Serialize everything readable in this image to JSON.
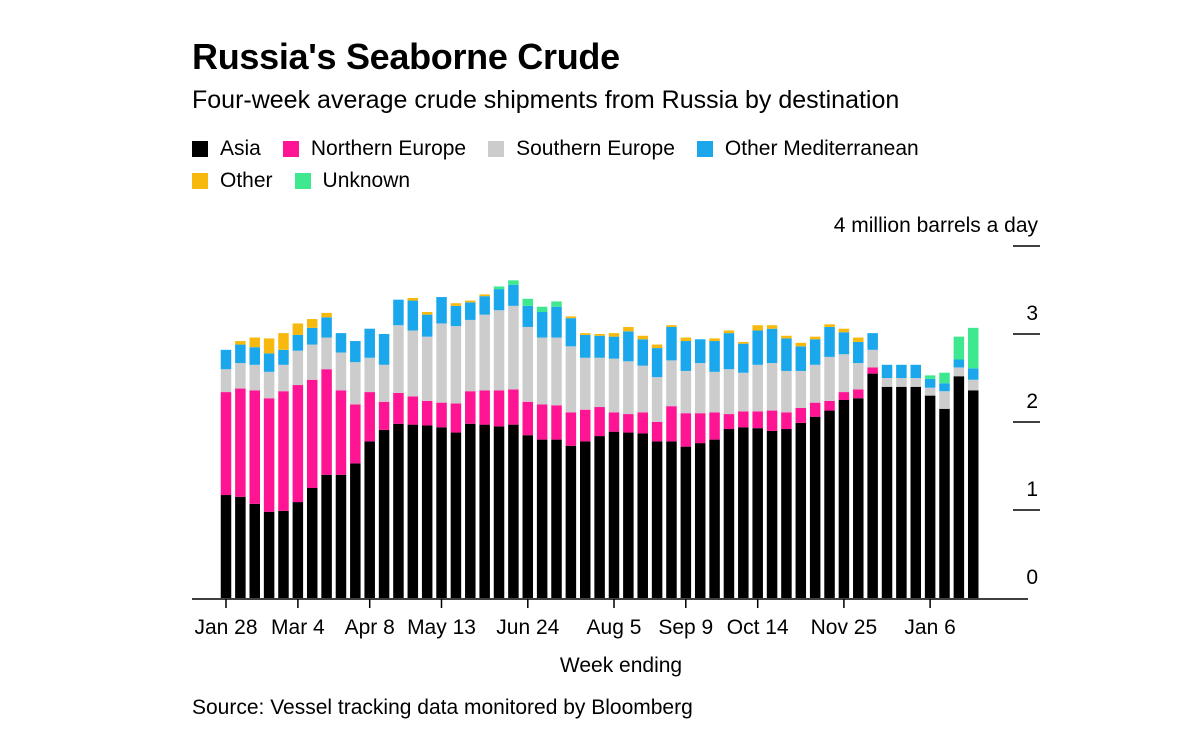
{
  "header": {
    "title": "Russia's Seaborne Crude",
    "subtitle": "Four-week average crude shipments from Russia by destination"
  },
  "legend": [
    {
      "label": "Asia",
      "color": "#000000"
    },
    {
      "label": "Northern Europe",
      "color": "#ff1493"
    },
    {
      "label": "Southern Europe",
      "color": "#cccccc"
    },
    {
      "label": "Other Mediterranean",
      "color": "#1aa7ec"
    },
    {
      "label": "Other",
      "color": "#f8b90e"
    },
    {
      "label": "Unknown",
      "color": "#3ee88e"
    }
  ],
  "source": "Source: Vessel tracking data monitored by Bloomberg",
  "chart_data": {
    "type": "bar",
    "stacked": true,
    "title": "Russia's Seaborne Crude",
    "subtitle": "Four-week average crude shipments from Russia by destination",
    "xlabel": "Week ending",
    "ylabel": "4 million barrels a day",
    "ylim": [
      0,
      4
    ],
    "y_ticks": [
      {
        "value": 0,
        "label": "0"
      },
      {
        "value": 1,
        "label": "1"
      },
      {
        "value": 2,
        "label": "2"
      },
      {
        "value": 3,
        "label": "3"
      },
      {
        "value": 4,
        "label": "4 million barrels a day"
      }
    ],
    "x_ticks": [
      {
        "index": 0,
        "label": "Jan 28"
      },
      {
        "index": 5,
        "label": "Mar 4"
      },
      {
        "index": 10,
        "label": "Apr 8"
      },
      {
        "index": 15,
        "label": "May 13"
      },
      {
        "index": 21,
        "label": "Jun 24"
      },
      {
        "index": 27,
        "label": "Aug 5"
      },
      {
        "index": 32,
        "label": "Sep 9"
      },
      {
        "index": 37,
        "label": "Oct 14"
      },
      {
        "index": 43,
        "label": "Nov 25"
      },
      {
        "index": 49,
        "label": "Jan 6"
      }
    ],
    "series": [
      {
        "name": "Asia",
        "color": "#000000",
        "values": [
          1.17,
          1.15,
          1.07,
          0.98,
          0.99,
          1.09,
          1.25,
          1.4,
          1.4,
          1.53,
          1.78,
          1.91,
          1.98,
          1.97,
          1.96,
          1.94,
          1.88,
          1.98,
          1.97,
          1.95,
          1.97,
          1.85,
          1.8,
          1.8,
          1.73,
          1.78,
          1.84,
          1.89,
          1.88,
          1.87,
          1.78,
          1.78,
          1.72,
          1.76,
          1.8,
          1.92,
          1.94,
          1.93,
          1.9,
          1.92,
          1.99,
          2.06,
          2.13,
          2.25,
          2.27,
          2.55,
          2.4,
          2.4,
          2.4,
          2.3,
          2.15,
          2.52,
          2.36
        ]
      },
      {
        "name": "Northern Europe",
        "color": "#ff1493",
        "values": [
          1.17,
          1.23,
          1.29,
          1.29,
          1.36,
          1.33,
          1.23,
          1.2,
          0.96,
          0.67,
          0.56,
          0.32,
          0.35,
          0.32,
          0.28,
          0.28,
          0.33,
          0.37,
          0.39,
          0.41,
          0.4,
          0.38,
          0.4,
          0.39,
          0.38,
          0.36,
          0.33,
          0.22,
          0.21,
          0.24,
          0.22,
          0.4,
          0.38,
          0.34,
          0.31,
          0.17,
          0.18,
          0.19,
          0.23,
          0.19,
          0.17,
          0.16,
          0.11,
          0.09,
          0.1,
          0.07,
          0,
          0,
          0,
          0,
          0,
          0,
          0
        ]
      },
      {
        "name": "Southern Europe",
        "color": "#cccccc",
        "values": [
          0.26,
          0.29,
          0.29,
          0.3,
          0.3,
          0.39,
          0.4,
          0.36,
          0.43,
          0.48,
          0.39,
          0.42,
          0.77,
          0.75,
          0.73,
          0.9,
          0.88,
          0.81,
          0.86,
          0.91,
          0.95,
          0.85,
          0.76,
          0.77,
          0.75,
          0.59,
          0.56,
          0.61,
          0.6,
          0.53,
          0.51,
          0.52,
          0.48,
          0.57,
          0.46,
          0.51,
          0.44,
          0.53,
          0.54,
          0.47,
          0.42,
          0.43,
          0.5,
          0.43,
          0.3,
          0.2,
          0.1,
          0.1,
          0.1,
          0.09,
          0.2,
          0.1,
          0.12
        ]
      },
      {
        "name": "Other Mediterranean",
        "color": "#1aa7ec",
        "values": [
          0.22,
          0.21,
          0.2,
          0.21,
          0.17,
          0.18,
          0.19,
          0.23,
          0.22,
          0.24,
          0.33,
          0.35,
          0.29,
          0.34,
          0.25,
          0.3,
          0.23,
          0.2,
          0.21,
          0.24,
          0.24,
          0.24,
          0.29,
          0.35,
          0.32,
          0.26,
          0.25,
          0.25,
          0.34,
          0.3,
          0.33,
          0.38,
          0.34,
          0.27,
          0.35,
          0.41,
          0.33,
          0.39,
          0.39,
          0.37,
          0.28,
          0.29,
          0.34,
          0.25,
          0.24,
          0.19,
          0.15,
          0.15,
          0.15,
          0.1,
          0.09,
          0.09,
          0.13
        ]
      },
      {
        "name": "Other",
        "color": "#f8b90e",
        "values": [
          0,
          0.04,
          0.11,
          0.17,
          0.19,
          0.13,
          0.1,
          0.05,
          0,
          0,
          0,
          0,
          0,
          0.03,
          0.03,
          0,
          0.03,
          0.02,
          0.02,
          0,
          0,
          0,
          0,
          0,
          0.02,
          0.02,
          0.02,
          0.04,
          0.05,
          0.04,
          0.04,
          0.02,
          0.04,
          0,
          0.03,
          0.03,
          0.02,
          0.06,
          0.04,
          0.03,
          0.04,
          0.03,
          0.03,
          0.04,
          0.05,
          0,
          0,
          0,
          0,
          0,
          0,
          0,
          0
        ]
      },
      {
        "name": "Unknown",
        "color": "#3ee88e",
        "values": [
          0,
          0,
          0,
          0,
          0,
          0,
          0,
          0,
          0,
          0,
          0,
          0,
          0,
          0,
          0,
          0,
          0,
          0,
          0,
          0.03,
          0.05,
          0.08,
          0.06,
          0.06,
          0,
          0,
          0,
          0,
          0,
          0,
          0,
          0,
          0,
          0,
          0,
          0,
          0,
          0,
          0,
          0,
          0,
          0,
          0,
          0,
          0,
          0,
          0,
          0,
          0,
          0.04,
          0.12,
          0.26,
          0.46
        ]
      }
    ]
  }
}
